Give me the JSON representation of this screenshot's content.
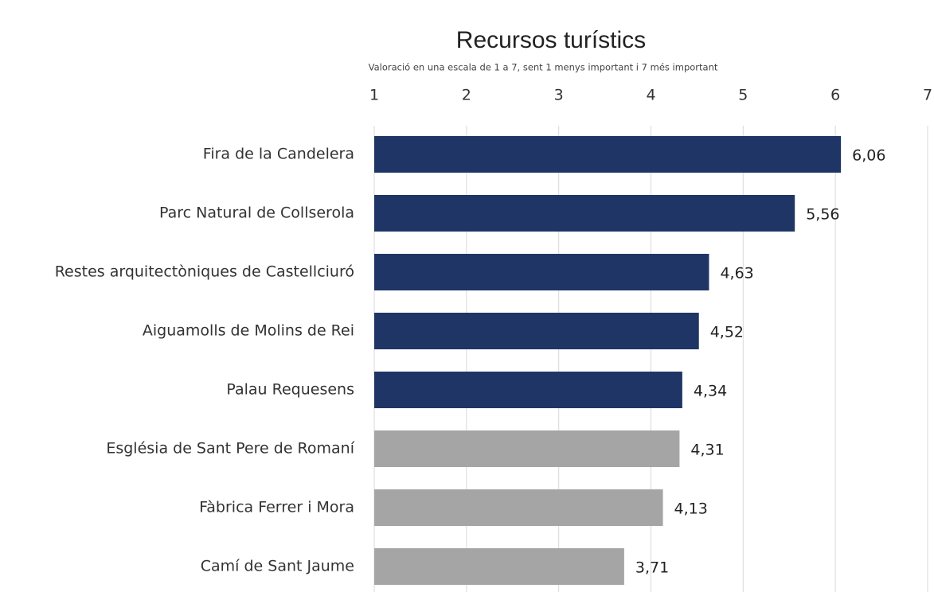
{
  "chart_data": {
    "type": "barh",
    "title": "Recursos turístics",
    "subtitle": "Valoració en una escala de 1 a 7, sent 1 menys important i 7 més important",
    "categories": [
      "Fira de la Candelera",
      "Parc Natural de Collserola",
      "Restes arquitectòniques de Castellciuró",
      "Aiguamolls de Molins de Rei",
      "Palau Requesens",
      "Església de Sant Pere de Romaní",
      "Fàbrica Ferrer i Mora",
      "Camí de Sant Jaume"
    ],
    "values": [
      6.06,
      5.56,
      4.63,
      4.52,
      4.34,
      4.31,
      4.13,
      3.71
    ],
    "value_labels": [
      "6,06",
      "5,56",
      "4,63",
      "4,52",
      "4,34",
      "4,31",
      "4,13",
      "3,71"
    ],
    "colors": [
      "#1f3566",
      "#1f3566",
      "#1f3566",
      "#1f3566",
      "#1f3566",
      "#a5a5a5",
      "#a5a5a5",
      "#a5a5a5"
    ],
    "xlim": [
      1,
      7
    ],
    "xticks": [
      1,
      2,
      3,
      4,
      5,
      6,
      7
    ],
    "grid": true
  }
}
